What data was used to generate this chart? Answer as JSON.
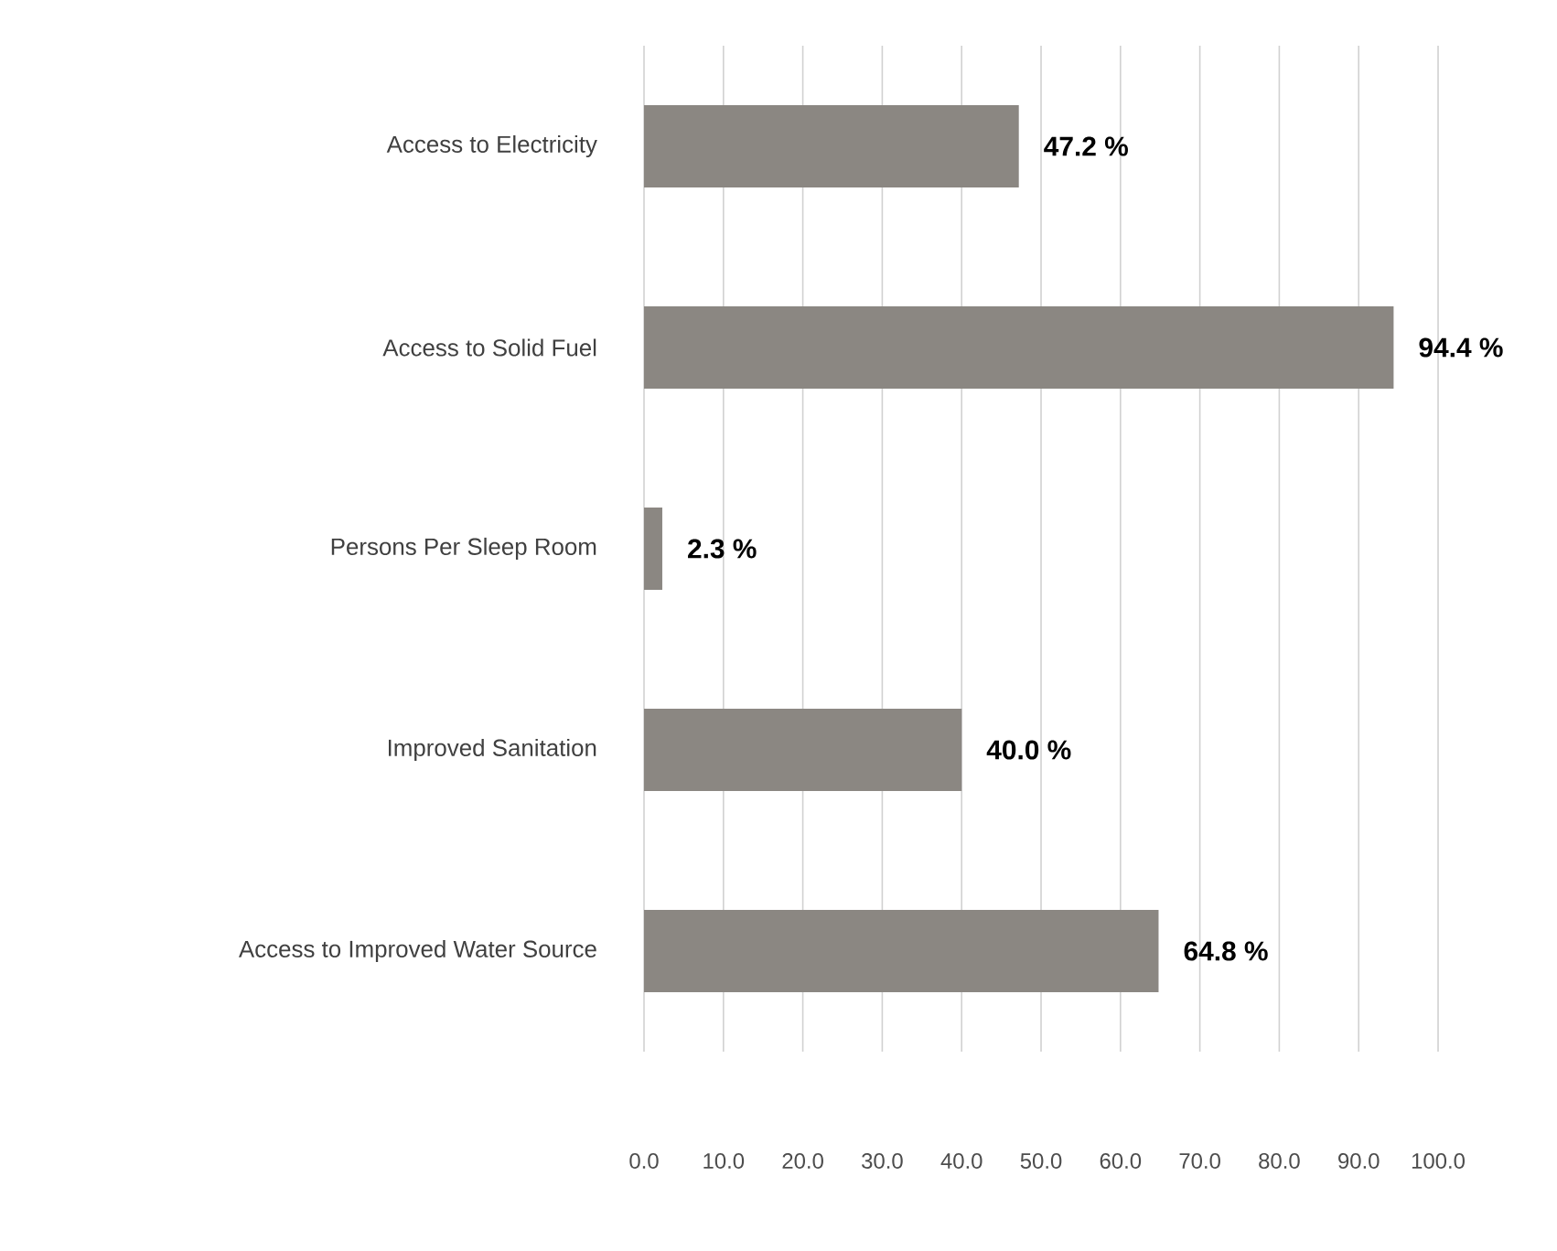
{
  "chart_data": {
    "type": "bar",
    "orientation": "horizontal",
    "categories": [
      "Access to Electricity",
      "Access to Solid Fuel",
      "Persons Per Sleep Room",
      "Improved Sanitation",
      "Access to Improved Water Source"
    ],
    "values": [
      47.2,
      94.4,
      2.3,
      40.0,
      64.8
    ],
    "value_labels": [
      "47.2 %",
      "94.4 %",
      "2.3 %",
      "40.0 %",
      "64.8 %"
    ],
    "color": "#8b8782",
    "xlim": [
      0,
      100
    ],
    "xticks": [
      {
        "value": 0,
        "label": "0.0"
      },
      {
        "value": 10,
        "label": "10.0"
      },
      {
        "value": 20,
        "label": "20.0"
      },
      {
        "value": 30,
        "label": "30.0"
      },
      {
        "value": 40,
        "label": "40.0"
      },
      {
        "value": 50,
        "label": "50.0"
      },
      {
        "value": 60,
        "label": "60.0"
      },
      {
        "value": 70,
        "label": "70.0"
      },
      {
        "value": 80,
        "label": "80.0"
      },
      {
        "value": 90,
        "label": "90.0"
      },
      {
        "value": 100,
        "label": "100.0"
      }
    ],
    "grid": "x"
  }
}
